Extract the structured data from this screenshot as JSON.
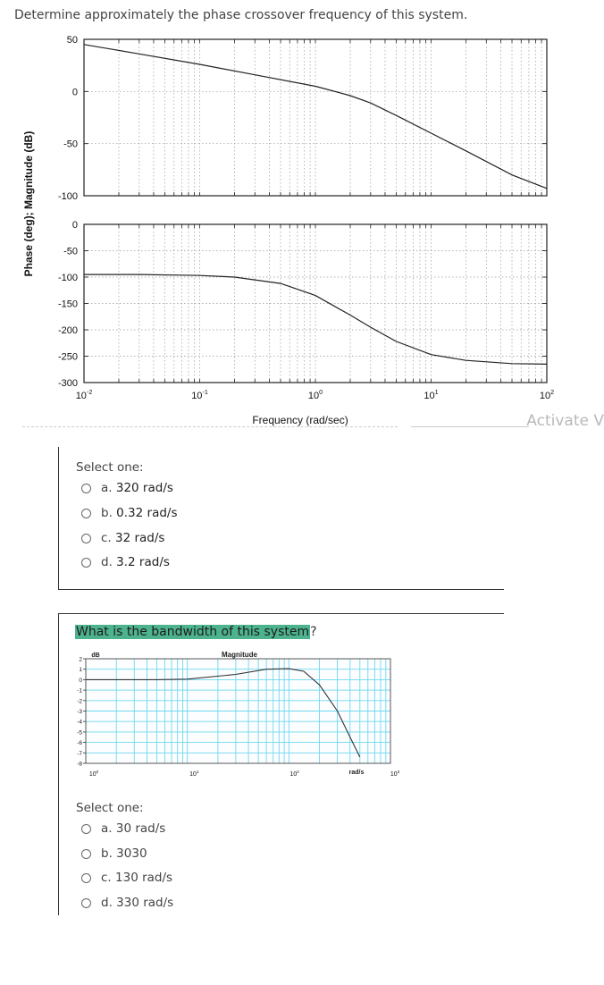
{
  "question1": {
    "text": "Determine approximately the phase crossover frequency of this system.",
    "select_one": "Select one:",
    "options": [
      {
        "letter": "a.",
        "answer": "320 rad/s"
      },
      {
        "letter": "b.",
        "answer": "0.32 rad/s"
      },
      {
        "letter": "c.",
        "answer": "32 rad/s"
      },
      {
        "letter": "d.",
        "answer": "3.2 rad/s"
      }
    ]
  },
  "watermark": "Activate V",
  "question2": {
    "text_highlighted": "What is the bandwidth of this system",
    "text_suffix": "?",
    "select_one": "Select one:",
    "options": [
      {
        "letter": "a.",
        "answer": "30 rad/s"
      },
      {
        "letter": "b.",
        "answer": "3030"
      },
      {
        "letter": "c.",
        "answer": "130 rad/s"
      },
      {
        "letter": "d.",
        "answer": "330 rad/s"
      }
    ]
  },
  "chart_data": [
    {
      "type": "line",
      "title": "",
      "ylabel": "Phase (deg); Magnitude (dB)",
      "xlabel": "Frequency (rad/sec)",
      "x_scale": "log",
      "xlim": [
        0.01,
        100
      ],
      "x_ticks": [
        "10^-2",
        "10^-1",
        "10^0",
        "10^1",
        "10^2"
      ],
      "grid": true,
      "panels": [
        {
          "name": "magnitude",
          "ylim": [
            -100,
            50
          ],
          "y_ticks": [
            "50",
            "0",
            "-50",
            "-100"
          ],
          "x": [
            0.01,
            0.03,
            0.1,
            0.3,
            1,
            2,
            3,
            5,
            10,
            20,
            50,
            100
          ],
          "y": [
            45,
            36,
            26,
            16,
            5,
            -4,
            -11,
            -23,
            -40,
            -57,
            -80,
            -93
          ]
        },
        {
          "name": "phase",
          "ylim": [
            -300,
            0
          ],
          "y_ticks": [
            "0",
            "-50",
            "-100",
            "-150",
            "-200",
            "-250",
            "-300"
          ],
          "x": [
            0.01,
            0.03,
            0.1,
            0.2,
            0.5,
            1,
            2,
            3,
            5,
            10,
            20,
            50,
            100
          ],
          "y": [
            -95,
            -95,
            -97,
            -100,
            -112,
            -135,
            -172,
            -195,
            -222,
            -247,
            -258,
            -264,
            -265
          ]
        }
      ]
    },
    {
      "type": "line",
      "title": "Magnitude",
      "ylabel": "dB",
      "xlabel": "rad/s",
      "x_scale": "log",
      "xlim": [
        1,
        1000
      ],
      "x_ticks": [
        "10^0",
        "10^1",
        "10^2",
        "10^3"
      ],
      "ylim": [
        -8,
        2
      ],
      "y_ticks": [
        "2",
        "1",
        "0",
        "-1",
        "-2",
        "-3",
        "-4",
        "-5",
        "-6",
        "-7",
        "-8"
      ],
      "grid": true,
      "x": [
        1,
        5,
        10,
        30,
        60,
        100,
        140,
        200,
        300,
        400,
        500
      ],
      "y": [
        0,
        0,
        0.05,
        0.5,
        1.0,
        1.05,
        0.8,
        -0.5,
        -3.0,
        -5.5,
        -7.4
      ]
    }
  ]
}
